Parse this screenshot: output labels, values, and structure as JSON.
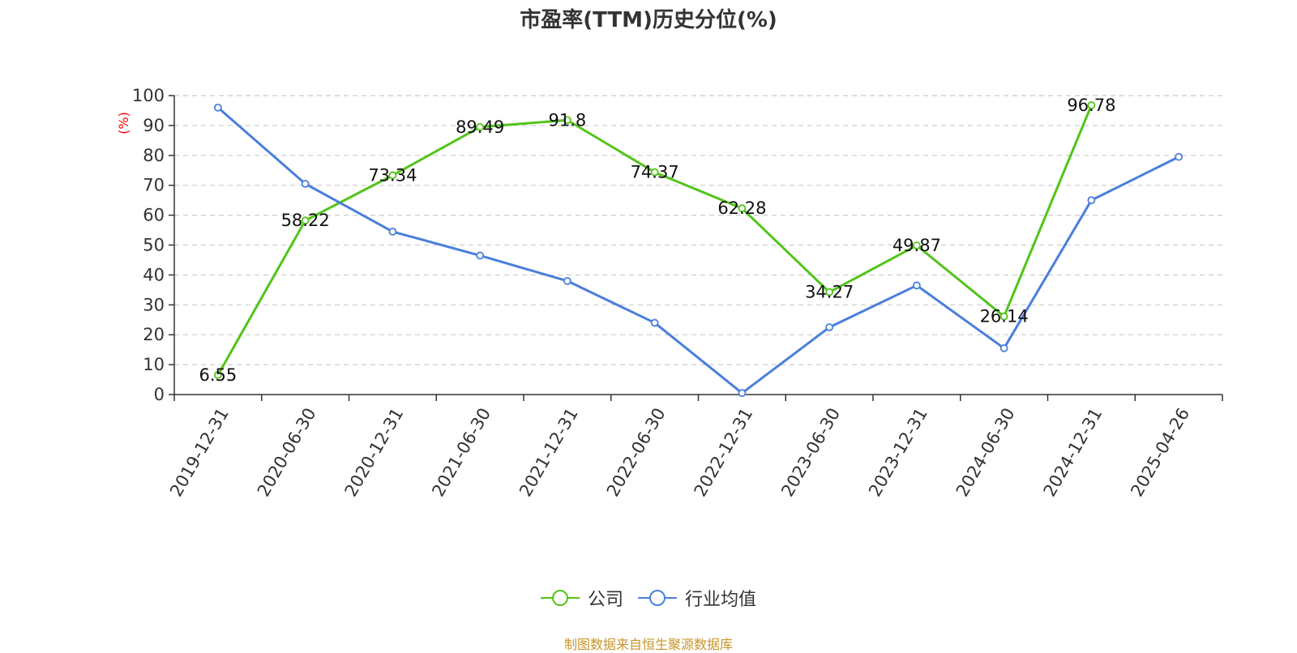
{
  "chart_data": {
    "type": "line",
    "title": "市盈率(TTM)历史分位(%)",
    "ylabel": "(%)",
    "xlabel": "",
    "ylim": [
      0,
      100
    ],
    "yticks": [
      0,
      10,
      20,
      30,
      40,
      50,
      60,
      70,
      80,
      90,
      100
    ],
    "categories": [
      "2019-12-31",
      "2020-06-30",
      "2020-12-31",
      "2021-06-30",
      "2021-12-31",
      "2022-06-30",
      "2022-12-31",
      "2023-06-30",
      "2023-12-31",
      "2024-06-30",
      "2024-12-31",
      "2025-04-26"
    ],
    "grid": true,
    "legend_position": "bottom",
    "series": [
      {
        "name": "公司",
        "color": "#52c41a",
        "show_labels": true,
        "values": [
          6.55,
          58.22,
          73.34,
          89.49,
          91.8,
          74.37,
          62.28,
          34.27,
          49.87,
          26.14,
          96.78,
          null
        ],
        "labels": [
          "6.55",
          "58.22",
          "73.34",
          "89.49",
          "91.8",
          "74.37",
          "62.28",
          "34.27",
          "49.87",
          "26.14",
          "96.78",
          ""
        ]
      },
      {
        "name": "行业均值",
        "color": "#4a7fdc",
        "show_labels": false,
        "values": [
          96,
          70.5,
          54.5,
          46.5,
          38,
          24,
          0.5,
          22.5,
          36.5,
          15.5,
          65,
          79.5
        ]
      }
    ]
  },
  "source_note": "制图数据来自恒生聚源数据库",
  "colors": {
    "axis": "#333333",
    "grid": "#cccccc",
    "ylabel": "#ff0000",
    "source": "#c8962a"
  }
}
